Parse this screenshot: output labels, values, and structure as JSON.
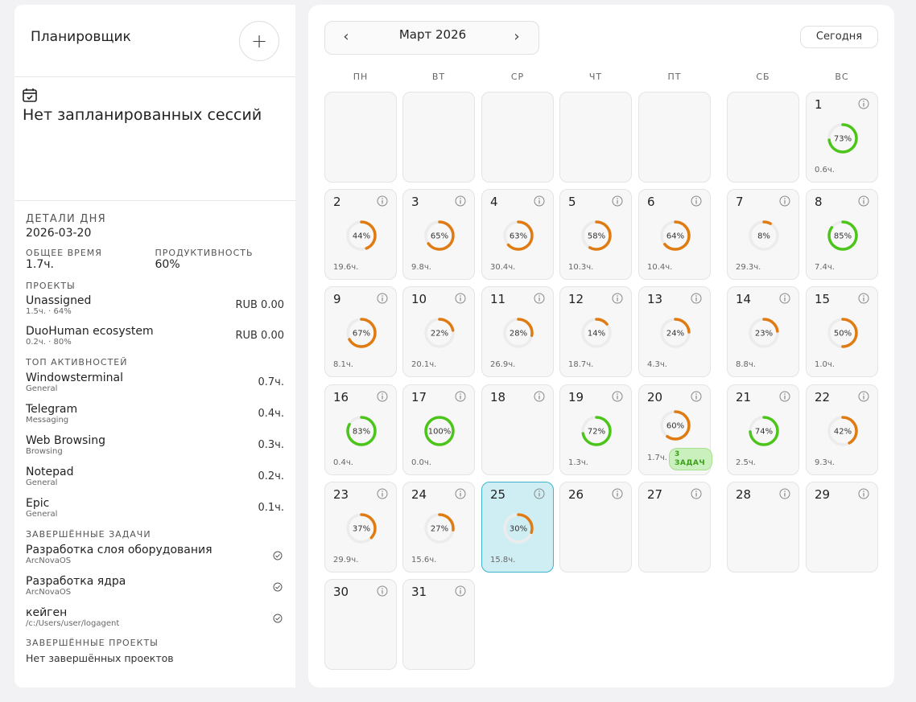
{
  "sidebar": {
    "title": "Планировщик",
    "add_label": "+",
    "no_sessions": "Нет запланированных сессий",
    "details_label": "ДЕТАЛИ ДНЯ",
    "date": "2026-03-20",
    "total_time_label": "ОБЩЕЕ ВРЕМЯ",
    "total_time": "1.7ч.",
    "productivity_label": "ПРОДУКТИВНОСТЬ",
    "productivity": "60%",
    "projects_label": "ПРОЕКТЫ",
    "projects": [
      {
        "name": "Unassigned",
        "sub": "1.5ч. · 64%",
        "amount": "RUB 0.00"
      },
      {
        "name": "DuoHuman ecosystem",
        "sub": "0.2ч. · 80%",
        "amount": "RUB 0.00"
      }
    ],
    "activities_label": "ТОП АКТИВНОСТЕЙ",
    "activities": [
      {
        "name": "Windowsterminal",
        "sub": "General",
        "time": "0.7ч."
      },
      {
        "name": "Telegram",
        "sub": "Messaging",
        "time": "0.4ч."
      },
      {
        "name": "Web Browsing",
        "sub": "Browsing",
        "time": "0.3ч."
      },
      {
        "name": "Notepad",
        "sub": "General",
        "time": "0.2ч."
      },
      {
        "name": "Epic",
        "sub": "General",
        "time": "0.1ч."
      }
    ],
    "tasks_label": "ЗАВЕРШЁННЫЕ ЗАДАЧИ",
    "tasks": [
      {
        "name": "Разработка слоя оборудования",
        "sub": "ArcNovaOS"
      },
      {
        "name": "Разработка ядра",
        "sub": "ArcNovaOS"
      },
      {
        "name": "кейген",
        "sub": "/c:/Users/user/logagent"
      }
    ],
    "done_projects_label": "ЗАВЕРШЁННЫЕ ПРОЕКТЫ",
    "done_projects_empty": "Нет завершённых проектов"
  },
  "calendar": {
    "month_label": "Март 2026",
    "prev_icon": "chevron-left-icon",
    "next_icon": "chevron-right-icon",
    "today_label": "Сегодня",
    "weekdays": [
      "ПН",
      "ВТ",
      "СР",
      "ЧТ",
      "ПТ",
      "СБ",
      "ВС"
    ],
    "first_weekday_index": 6,
    "today_day": 25,
    "colors": {
      "green": "#4cc51a",
      "orange": "#e07b12",
      "track": "#ececec",
      "today_bg": "#cfeef4"
    },
    "days": [
      {
        "d": 1,
        "pct": 73,
        "hrs": "0.6ч."
      },
      {
        "d": 2,
        "pct": 44,
        "hrs": "19.6ч."
      },
      {
        "d": 3,
        "pct": 65,
        "hrs": "9.8ч."
      },
      {
        "d": 4,
        "pct": 63,
        "hrs": "30.4ч."
      },
      {
        "d": 5,
        "pct": 58,
        "hrs": "10.3ч."
      },
      {
        "d": 6,
        "pct": 64,
        "hrs": "10.4ч."
      },
      {
        "d": 7,
        "pct": 8,
        "hrs": "29.3ч."
      },
      {
        "d": 8,
        "pct": 85,
        "hrs": "7.4ч."
      },
      {
        "d": 9,
        "pct": 67,
        "hrs": "8.1ч."
      },
      {
        "d": 10,
        "pct": 22,
        "hrs": "20.1ч."
      },
      {
        "d": 11,
        "pct": 28,
        "hrs": "26.9ч."
      },
      {
        "d": 12,
        "pct": 14,
        "hrs": "18.7ч."
      },
      {
        "d": 13,
        "pct": 24,
        "hrs": "4.3ч."
      },
      {
        "d": 14,
        "pct": 23,
        "hrs": "8.8ч."
      },
      {
        "d": 15,
        "pct": 50,
        "hrs": "1.0ч."
      },
      {
        "d": 16,
        "pct": 83,
        "hrs": "0.4ч."
      },
      {
        "d": 17,
        "pct": 100,
        "hrs": "0.0ч."
      },
      {
        "d": 18
      },
      {
        "d": 19,
        "pct": 72,
        "hrs": "1.3ч."
      },
      {
        "d": 20,
        "pct": 60,
        "hrs": "1.7ч.",
        "badge": "3 ЗАДАЧ"
      },
      {
        "d": 21,
        "pct": 74,
        "hrs": "2.5ч."
      },
      {
        "d": 22,
        "pct": 42,
        "hrs": "9.3ч."
      },
      {
        "d": 23,
        "pct": 37,
        "hrs": "29.9ч."
      },
      {
        "d": 24,
        "pct": 27,
        "hrs": "15.6ч."
      },
      {
        "d": 25,
        "pct": 30,
        "hrs": "15.8ч."
      },
      {
        "d": 26
      },
      {
        "d": 27
      },
      {
        "d": 28
      },
      {
        "d": 29
      },
      {
        "d": 30
      },
      {
        "d": 31
      }
    ]
  }
}
